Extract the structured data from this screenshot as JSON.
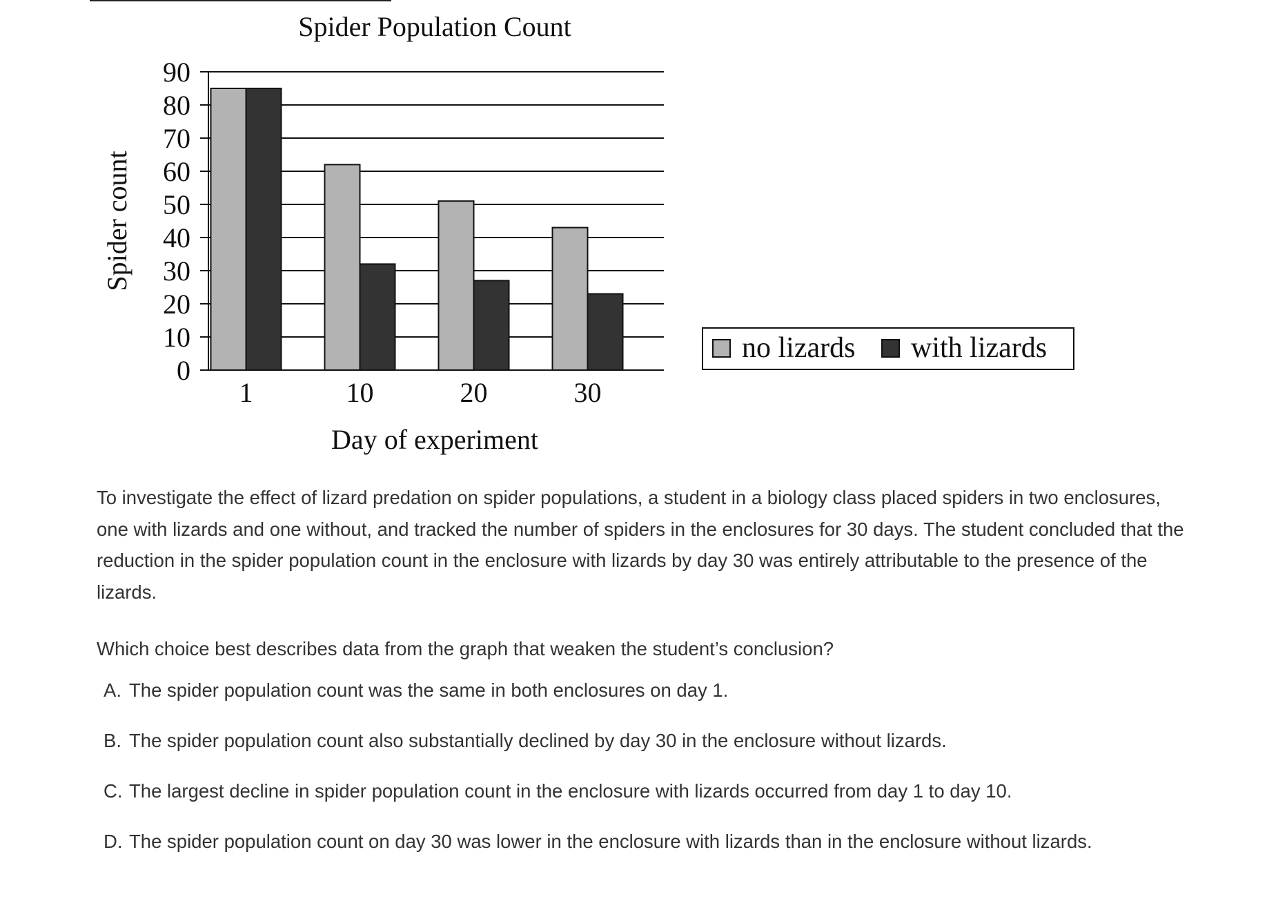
{
  "chart_data": {
    "type": "bar",
    "title": "Spider Population Count",
    "xlabel": "Day of experiment",
    "ylabel": "Spider count",
    "categories": [
      "1",
      "10",
      "20",
      "30"
    ],
    "series": [
      {
        "name": "no lizards",
        "values": [
          85,
          62,
          51,
          43
        ],
        "color": "#b3b3b3"
      },
      {
        "name": "with lizards",
        "values": [
          85,
          32,
          27,
          23
        ],
        "color": "#333333"
      }
    ],
    "ylim": [
      0,
      90
    ],
    "yticks": [
      "0",
      "10",
      "20",
      "30",
      "40",
      "50",
      "60",
      "70",
      "80",
      "90"
    ],
    "grid": true,
    "legend": "right"
  },
  "question": {
    "passage": "To investigate the effect of lizard predation on spider populations, a student in a biology class placed spiders in two enclosures, one with lizards and one without, and tracked the number of spiders in the enclosures for 30 days. The student concluded that the reduction in the spider population count in the enclosure with lizards by day 30 was entirely attributable to the presence of the lizards.",
    "prompt": "Which choice best describes data from the graph that weaken the student’s conclusion?",
    "choices": [
      {
        "letter": "A.",
        "text": "The spider population count was the same in both enclosures on day 1."
      },
      {
        "letter": "B.",
        "text": "The spider population count also substantially declined by day 30 in the enclosure without lizards."
      },
      {
        "letter": "C.",
        "text": "The largest decline in spider population count in the enclosure with lizards occurred from day 1 to day 10."
      },
      {
        "letter": "D.",
        "text": "The spider population count on day 30 was lower in the enclosure with lizards than in the enclosure without lizards."
      }
    ]
  }
}
